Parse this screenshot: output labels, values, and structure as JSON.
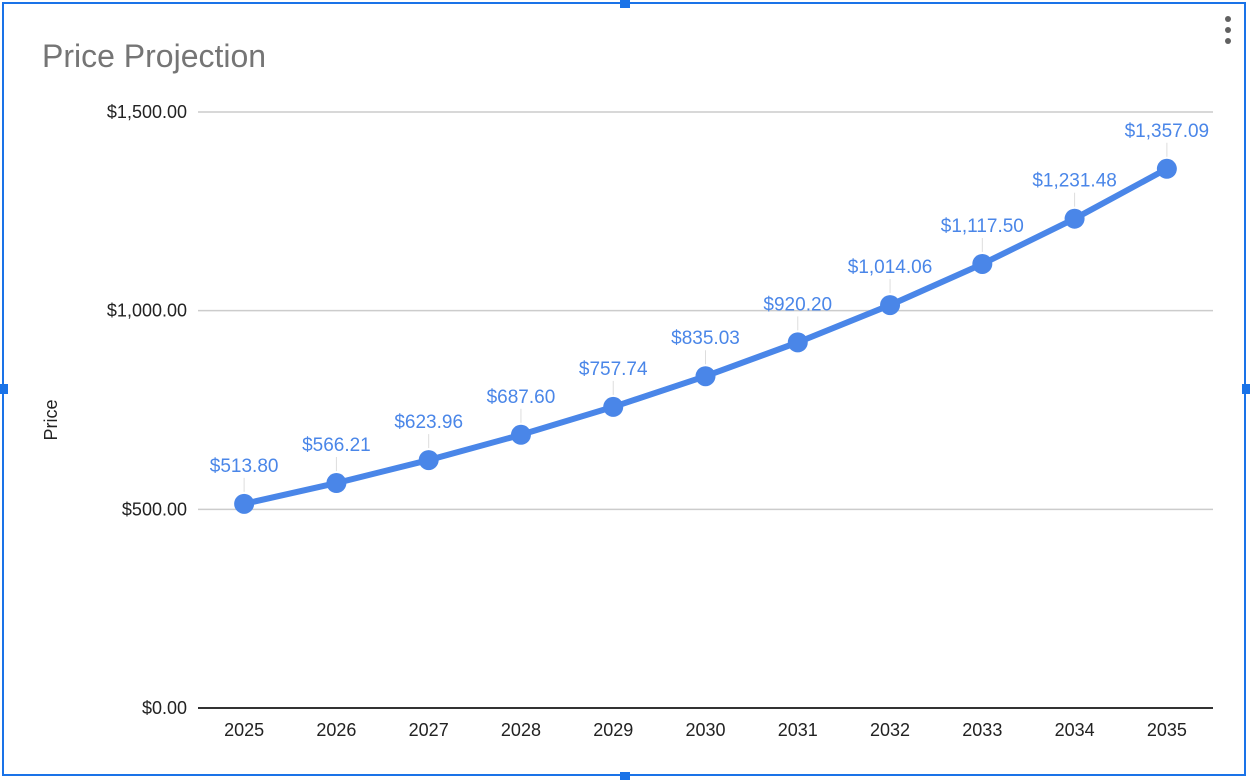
{
  "chart_data": {
    "type": "line",
    "title": "Price Projection",
    "xlabel": "",
    "ylabel": "Price",
    "categories": [
      "2025",
      "2026",
      "2027",
      "2028",
      "2029",
      "2030",
      "2031",
      "2032",
      "2033",
      "2034",
      "2035"
    ],
    "series": [
      {
        "values": [
          513.8,
          566.21,
          623.96,
          687.6,
          757.74,
          835.03,
          920.2,
          1014.06,
          1117.5,
          1231.48,
          1357.09
        ]
      }
    ],
    "data_labels": [
      "$513.80",
      "$566.21",
      "$623.96",
      "$687.60",
      "$757.74",
      "$835.03",
      "$920.20",
      "$1,014.06",
      "$1,117.50",
      "$1,231.48",
      "$1,357.09"
    ],
    "ylim": [
      0,
      1500
    ],
    "yticks": [
      0,
      500,
      1000,
      1500
    ],
    "ytick_labels": [
      "$0.00",
      "$500.00",
      "$1,000.00",
      "$1,500.00"
    ],
    "grid": true,
    "legend": "none",
    "colors": {
      "series": "#4a86e8",
      "grid": "#cccccc",
      "axis": "#333333",
      "title": "#757575",
      "selection": "#1a73e8"
    }
  }
}
